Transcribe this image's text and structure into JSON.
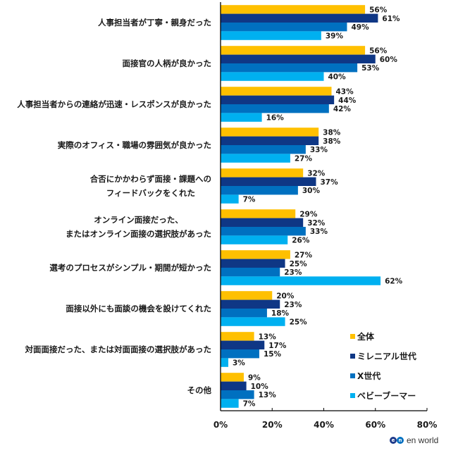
{
  "chart_data": {
    "type": "bar",
    "orientation": "horizontal",
    "title": "",
    "xlabel": "",
    "ylabel": "",
    "xlim": [
      0,
      80
    ],
    "xticks": [
      0,
      20,
      40,
      60,
      80
    ],
    "xtick_labels": [
      "0%",
      "20%",
      "40%",
      "60%",
      "80%"
    ],
    "grid": false,
    "legend_position": "bottom-right",
    "categories": [
      [
        "人事担当者が丁寧・親身だった"
      ],
      [
        "面接官の人柄が良かった"
      ],
      [
        "人事担当者からの連絡が迅速・レスポンスが良かった"
      ],
      [
        "実際のオフィス・職場の雰囲気が良かった"
      ],
      [
        "合否にかかわらず面接・課題への",
        "フィードバックをくれた"
      ],
      [
        "オンライン面接だった、",
        "またはオンライン面接の選択肢があった"
      ],
      [
        "選考のプロセスがシンプル・期間が短かった"
      ],
      [
        "面接以外にも面談の機会を設けてくれた"
      ],
      [
        "対面面接だった、または対面面接の選択肢があった"
      ],
      [
        "その他"
      ]
    ],
    "series": [
      {
        "name": "全体",
        "color": "#FFC000",
        "values": [
          56,
          56,
          43,
          38,
          32,
          29,
          27,
          20,
          13,
          9
        ]
      },
      {
        "name": "ミレニアル世代",
        "color": "#0F3785",
        "values": [
          61,
          60,
          44,
          38,
          37,
          32,
          25,
          23,
          17,
          10
        ]
      },
      {
        "name": "X世代",
        "color": "#0070C0",
        "values": [
          49,
          53,
          42,
          33,
          30,
          33,
          23,
          18,
          15,
          13
        ]
      },
      {
        "name": "ベビーブーマー",
        "color": "#00B0F0",
        "values": [
          39,
          40,
          16,
          27,
          7,
          26,
          62,
          25,
          3,
          7
        ]
      }
    ],
    "value_suffix": "%"
  },
  "branding": {
    "logo_mark": [
      "e",
      "n"
    ],
    "logo_text": "en world",
    "logo_colors": [
      "#1E3A8A",
      "#0070C0"
    ]
  }
}
